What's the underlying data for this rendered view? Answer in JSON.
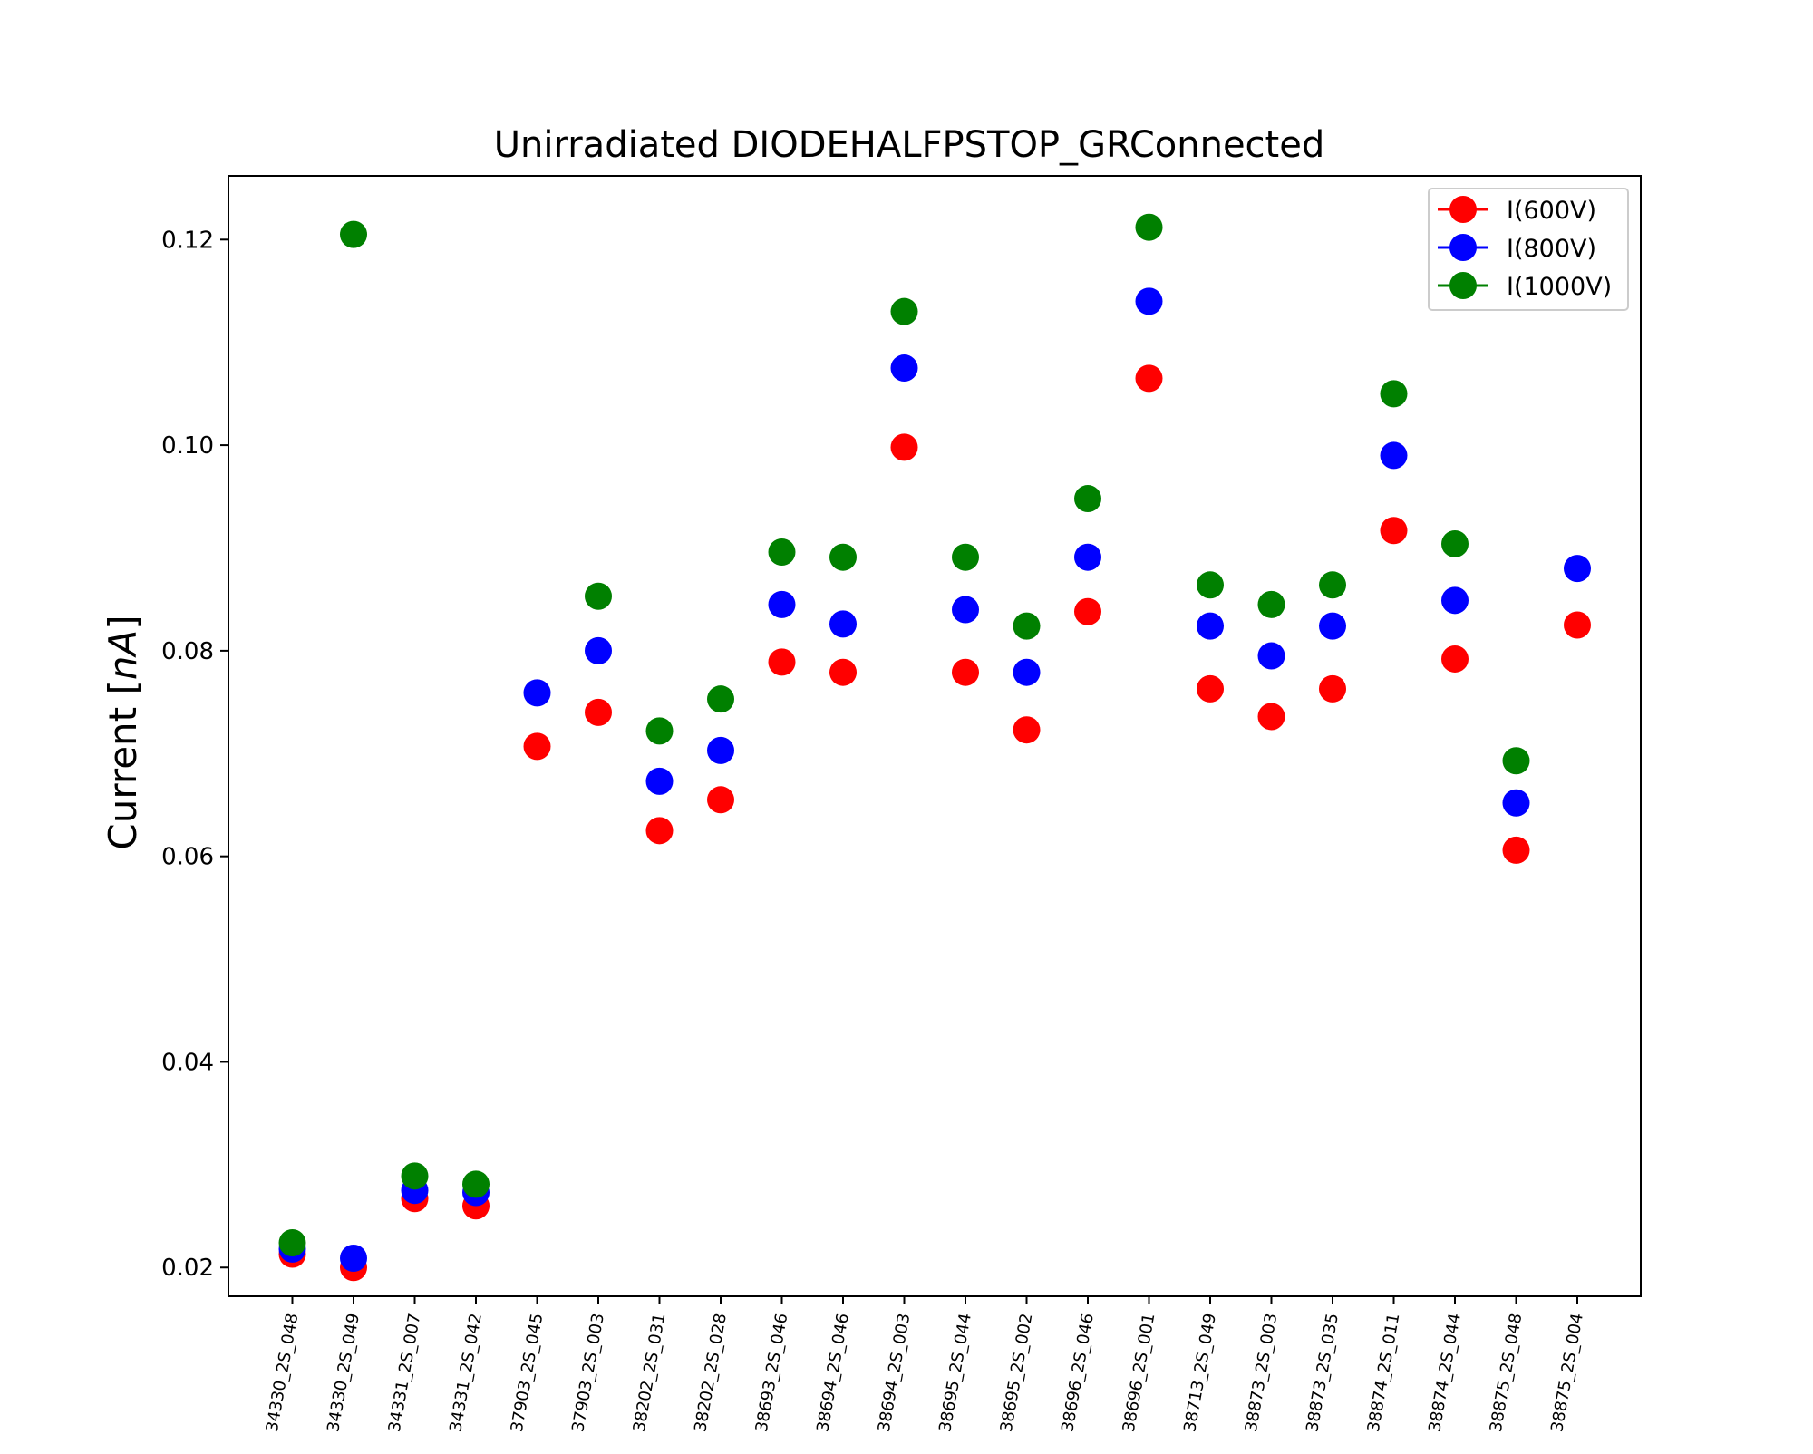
{
  "chart_data": {
    "type": "scatter",
    "title": "Unirradiated DIODEHALFPSTOP_GRConnected",
    "xlabel": "",
    "ylabel": "Current [",
    "ylabel_unit": "nA",
    "ylabel_close": "]",
    "ylim": [
      0.0172,
      0.1262
    ],
    "yticks": [
      "0.02",
      "0.04",
      "0.06",
      "0.08",
      "0.10",
      "0.12"
    ],
    "ytick_values": [
      0.02,
      0.04,
      0.06,
      0.08,
      0.1,
      0.12
    ],
    "grid": false,
    "legend_position": "top-right",
    "categories": [
      "34330_2S_048",
      "34330_2S_049",
      "34331_2S_007",
      "34331_2S_042",
      "37903_2S_045",
      "37903_2S_003",
      "38202_2S_031",
      "38202_2S_028",
      "38693_2S_046",
      "38694_2S_046",
      "38694_2S_003",
      "38695_2S_044",
      "38695_2S_002",
      "38696_2S_046",
      "38696_2S_001",
      "38713_2S_049",
      "38873_2S_003",
      "38873_2S_035",
      "38874_2S_011",
      "38874_2S_044",
      "38875_2S_048",
      "38875_2S_004"
    ],
    "series": [
      {
        "name": "I(600V)",
        "color": "#ff0000",
        "values": [
          0.0213,
          0.02,
          0.0267,
          0.026,
          0.0707,
          0.074,
          0.0625,
          0.0655,
          0.0789,
          0.0779,
          0.0998,
          0.0779,
          0.0723,
          0.0838,
          0.1065,
          0.0763,
          0.0736,
          0.0763,
          0.0917,
          0.0792,
          0.0606,
          0.0825
        ]
      },
      {
        "name": "I(800V)",
        "color": "#0000ff",
        "values": [
          0.0218,
          0.0209,
          0.0275,
          0.0273,
          0.0759,
          0.08,
          0.0673,
          0.0703,
          0.0845,
          0.0826,
          0.1075,
          0.084,
          0.0779,
          0.0891,
          0.114,
          0.0824,
          0.0795,
          0.0824,
          0.099,
          0.0849,
          0.0652,
          0.088
        ]
      },
      {
        "name": "I(1000V)",
        "color": "#008000",
        "values": [
          0.0224,
          0.1205,
          0.0289,
          0.0281,
          null,
          0.0853,
          0.0722,
          0.0753,
          0.0896,
          0.0891,
          0.113,
          0.0891,
          0.0824,
          0.0948,
          0.1212,
          0.0864,
          0.0845,
          0.0864,
          0.105,
          0.0904,
          0.0693,
          null
        ]
      }
    ]
  }
}
